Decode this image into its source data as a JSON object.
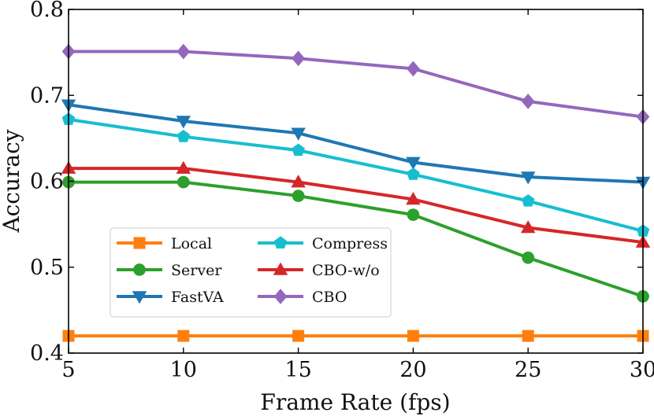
{
  "chart_data": {
    "type": "line",
    "title": "",
    "xlabel": "Frame Rate (fps)",
    "ylabel": "Accuracy",
    "x": [
      5,
      10,
      15,
      20,
      25,
      30
    ],
    "xlim": [
      5,
      30
    ],
    "ylim": [
      0.4,
      0.8
    ],
    "xticks": [
      "5",
      "10",
      "15",
      "20",
      "25",
      "30"
    ],
    "yticks": [
      "0.4",
      "0.5",
      "0.6",
      "0.7",
      "0.8"
    ],
    "grid": false,
    "legend_position": "lower-left",
    "legend_columns": 2,
    "series": [
      {
        "name": "Local",
        "color": "#ff7f0e",
        "marker": "square",
        "values": [
          0.42,
          0.42,
          0.42,
          0.42,
          0.42,
          0.42
        ]
      },
      {
        "name": "Server",
        "color": "#2ca02c",
        "marker": "circle",
        "values": [
          0.599,
          0.599,
          0.583,
          0.561,
          0.511,
          0.466
        ]
      },
      {
        "name": "FastVA",
        "color": "#1f77b4",
        "marker": "triangle-down",
        "values": [
          0.689,
          0.67,
          0.656,
          0.622,
          0.605,
          0.599
        ]
      },
      {
        "name": "Compress",
        "color": "#17becf",
        "marker": "pentagon",
        "values": [
          0.672,
          0.652,
          0.636,
          0.608,
          0.577,
          0.542
        ]
      },
      {
        "name": "CBO-w/o",
        "color": "#d62728",
        "marker": "triangle-up",
        "values": [
          0.615,
          0.615,
          0.599,
          0.579,
          0.546,
          0.529
        ]
      },
      {
        "name": "CBO",
        "color": "#9467bd",
        "marker": "diamond",
        "values": [
          0.751,
          0.751,
          0.743,
          0.731,
          0.693,
          0.675
        ]
      }
    ]
  }
}
